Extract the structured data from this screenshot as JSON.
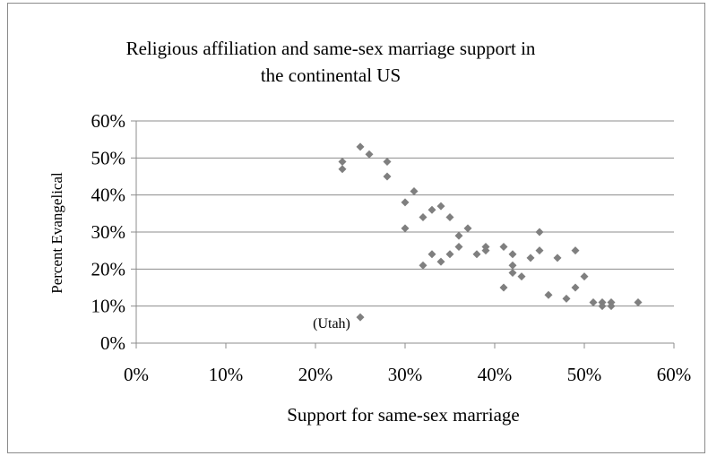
{
  "chart_data": {
    "type": "scatter",
    "title_lines": [
      "Religious affiliation and same-sex marriage support in",
      "the continental US"
    ],
    "xlabel": "Support for same-sex marriage",
    "ylabel": "Percent Evangelical",
    "xlim": [
      0,
      0.6
    ],
    "ylim": [
      0,
      0.6
    ],
    "x_ticks": [
      "0%",
      "10%",
      "20%",
      "30%",
      "40%",
      "50%",
      "60%"
    ],
    "y_ticks": [
      "0%",
      "10%",
      "20%",
      "30%",
      "40%",
      "50%",
      "60%"
    ],
    "grid": "horizontal",
    "marker_color": "#7f7f7f",
    "annotation": {
      "text": "(Utah)",
      "x": 0.25,
      "y": 0.07
    },
    "points": [
      {
        "x": 0.23,
        "y": 0.49
      },
      {
        "x": 0.23,
        "y": 0.47
      },
      {
        "x": 0.25,
        "y": 0.53
      },
      {
        "x": 0.26,
        "y": 0.51
      },
      {
        "x": 0.28,
        "y": 0.49
      },
      {
        "x": 0.28,
        "y": 0.45
      },
      {
        "x": 0.31,
        "y": 0.41
      },
      {
        "x": 0.3,
        "y": 0.38
      },
      {
        "x": 0.3,
        "y": 0.31
      },
      {
        "x": 0.32,
        "y": 0.34
      },
      {
        "x": 0.33,
        "y": 0.36
      },
      {
        "x": 0.34,
        "y": 0.37
      },
      {
        "x": 0.35,
        "y": 0.34
      },
      {
        "x": 0.37,
        "y": 0.31
      },
      {
        "x": 0.36,
        "y": 0.29
      },
      {
        "x": 0.36,
        "y": 0.26
      },
      {
        "x": 0.32,
        "y": 0.21
      },
      {
        "x": 0.33,
        "y": 0.24
      },
      {
        "x": 0.34,
        "y": 0.22
      },
      {
        "x": 0.35,
        "y": 0.24
      },
      {
        "x": 0.38,
        "y": 0.24
      },
      {
        "x": 0.39,
        "y": 0.26
      },
      {
        "x": 0.39,
        "y": 0.25
      },
      {
        "x": 0.41,
        "y": 0.26
      },
      {
        "x": 0.42,
        "y": 0.24
      },
      {
        "x": 0.42,
        "y": 0.21
      },
      {
        "x": 0.42,
        "y": 0.19
      },
      {
        "x": 0.43,
        "y": 0.18
      },
      {
        "x": 0.41,
        "y": 0.15
      },
      {
        "x": 0.44,
        "y": 0.23
      },
      {
        "x": 0.45,
        "y": 0.3
      },
      {
        "x": 0.45,
        "y": 0.25
      },
      {
        "x": 0.47,
        "y": 0.23
      },
      {
        "x": 0.49,
        "y": 0.25
      },
      {
        "x": 0.46,
        "y": 0.13
      },
      {
        "x": 0.48,
        "y": 0.12
      },
      {
        "x": 0.49,
        "y": 0.15
      },
      {
        "x": 0.5,
        "y": 0.18
      },
      {
        "x": 0.51,
        "y": 0.11
      },
      {
        "x": 0.52,
        "y": 0.11
      },
      {
        "x": 0.52,
        "y": 0.1
      },
      {
        "x": 0.53,
        "y": 0.11
      },
      {
        "x": 0.53,
        "y": 0.1
      },
      {
        "x": 0.56,
        "y": 0.11
      },
      {
        "x": 0.25,
        "y": 0.07
      }
    ]
  }
}
